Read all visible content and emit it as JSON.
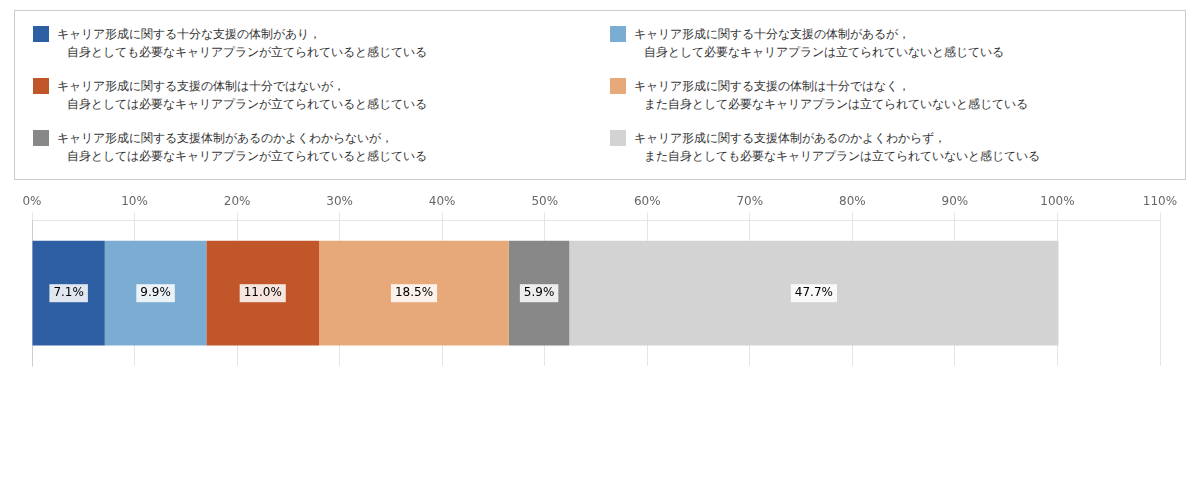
{
  "chart_data": {
    "type": "bar",
    "orientation": "horizontal",
    "stacked": true,
    "categories": [
      null
    ],
    "series": [
      {
        "name": "キャリア形成に関する十分な支援の体制があり，\n自身としても必要なキャリアプランが立てられていると感じている",
        "color": "#2E5FA3",
        "values": [
          7.1
        ],
        "value_labels": [
          "7.1%"
        ]
      },
      {
        "name": "キャリア形成に関する十分な支援の体制があるが，\n自身として必要なキャリアプランは立てられていないと感じている",
        "color": "#7BADD3",
        "values": [
          9.9
        ],
        "value_labels": [
          "9.9%"
        ]
      },
      {
        "name": "キャリア形成に関する支援の体制は十分ではないが，\n自身としては必要なキャリアプランが立てられていると感じている",
        "color": "#C0562A",
        "values": [
          11.0
        ],
        "value_labels": [
          "11.0%"
        ]
      },
      {
        "name": "キャリア形成に関する支援の体制は十分ではなく，\nまた自身として必要なキャリアプランは立てられていないと感じている",
        "color": "#E8A97A",
        "values": [
          18.5
        ],
        "value_labels": [
          "18.5%"
        ]
      },
      {
        "name": "キャリア形成に関する支援体制があるのかよくわからないが，\n自身としては必要なキャリアプランが立てられていると感じている",
        "color": "#888888",
        "values": [
          5.9
        ],
        "value_labels": [
          "5.9%"
        ]
      },
      {
        "name": "キャリア形成に関する支援体制があるのかよくわからず，\nまた自身としても必要なキャリアプランは立てられていないと感じている",
        "color": "#D3D3D3",
        "values": [
          47.7
        ],
        "value_labels": [
          "47.7%"
        ]
      }
    ],
    "xlim": [
      0,
      110
    ],
    "xticks": [
      {
        "value": 0,
        "label": "0%"
      },
      {
        "value": 10,
        "label": "10%"
      },
      {
        "value": 20,
        "label": "20%"
      },
      {
        "value": 30,
        "label": "30%"
      },
      {
        "value": 40,
        "label": "40%"
      },
      {
        "value": 50,
        "label": "50%"
      },
      {
        "value": 60,
        "label": "60%"
      },
      {
        "value": 70,
        "label": "70%"
      },
      {
        "value": 80,
        "label": "80%"
      },
      {
        "value": 90,
        "label": "90%"
      },
      {
        "value": 100,
        "label": "100%"
      },
      {
        "value": 110,
        "label": "110%"
      }
    ],
    "grid": true,
    "data_labels": true,
    "tick_labels": "x",
    "legend": "top"
  }
}
